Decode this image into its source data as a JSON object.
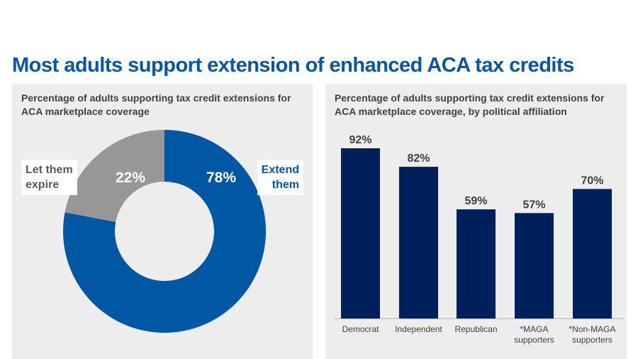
{
  "title": "Most adults support extension of enhanced ACA tax credits",
  "chart_data": [
    {
      "type": "pie",
      "donut": true,
      "subtitle": "Percentage of adults supporting tax credit extensions for ACA marketplace coverage",
      "slices": [
        {
          "label_lines": [
            "Extend",
            "them"
          ],
          "value": 78,
          "value_label": "78%",
          "color": "#0057a3"
        },
        {
          "label_lines": [
            "Let them",
            "expire"
          ],
          "value": 22,
          "value_label": "22%",
          "color": "#979797"
        }
      ]
    },
    {
      "type": "bar",
      "subtitle": "Percentage of adults supporting tax credit extensions for ACA marketplace coverage, by political affiliation",
      "categories": [
        [
          "Democrat"
        ],
        [
          "Independent"
        ],
        [
          "Republican"
        ],
        [
          "*MAGA",
          "supporters"
        ],
        [
          "*Non-MAGA",
          "supporters"
        ]
      ],
      "values": [
        92,
        82,
        59,
        57,
        70
      ],
      "data_labels": [
        "92%",
        "82%",
        "59%",
        "57%",
        "70%"
      ],
      "ylim": [
        0,
        100
      ],
      "grid": false,
      "color": "#00205b"
    }
  ]
}
